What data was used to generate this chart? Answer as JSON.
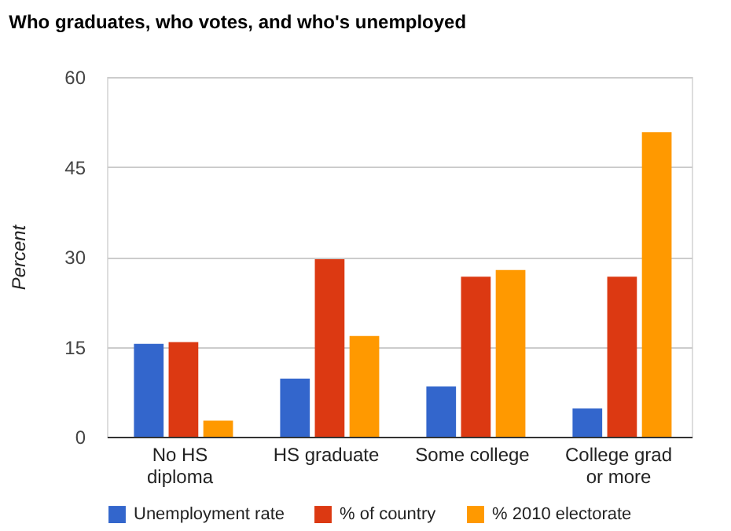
{
  "chart_data": {
    "type": "bar",
    "title": "Who graduates, who votes, and who's unemployed",
    "ylabel": "Percent",
    "categories": [
      "No HS diploma",
      "HS graduate",
      "Some college",
      "College grad or more"
    ],
    "series": [
      {
        "name": "Unemployment rate",
        "color": "#3366cc",
        "values": [
          15.5,
          9.7,
          8.4,
          4.7
        ]
      },
      {
        "name": "% of country",
        "color": "#dc3912",
        "values": [
          15.8,
          29.6,
          26.7,
          26.7
        ]
      },
      {
        "name": "% 2010 electorate",
        "color": "#ff9900",
        "values": [
          2.7,
          16.8,
          27.8,
          50.8
        ]
      }
    ],
    "ylim": [
      0,
      60
    ],
    "yticks": [
      0,
      15,
      30,
      45,
      60
    ],
    "grid": "y",
    "legend": "bottom"
  }
}
